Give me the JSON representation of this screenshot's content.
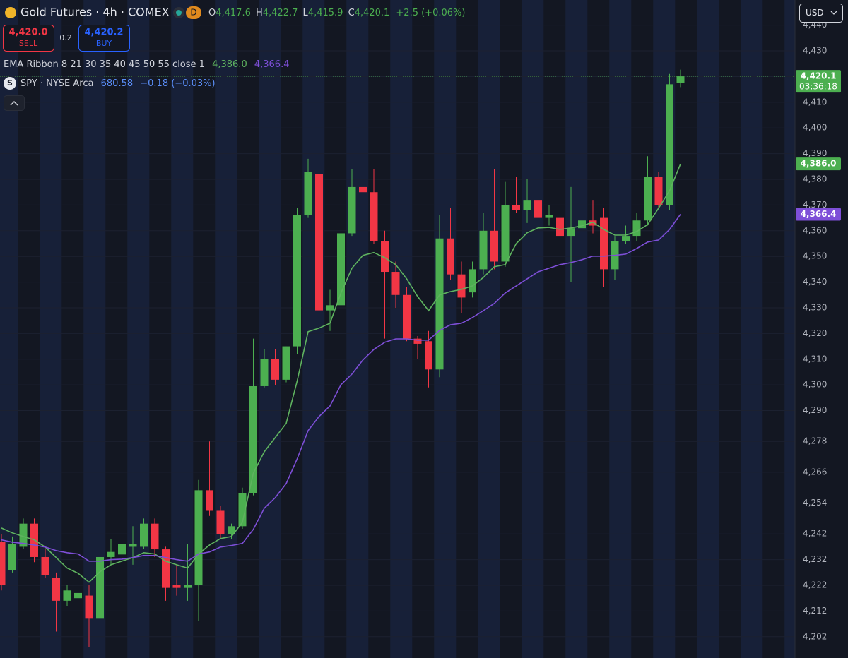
{
  "header": {
    "title": "Gold Futures · 4h · COMEX",
    "badge": "D",
    "ohlc": [
      {
        "key": "O",
        "value": "4,417.6"
      },
      {
        "key": "H",
        "value": "4,422.7"
      },
      {
        "key": "L",
        "value": "4,415.9"
      },
      {
        "key": "C",
        "value": "4,420.1"
      }
    ],
    "change": "+2.5 (+0.06%)"
  },
  "trade": {
    "sell_price": "4,420.0",
    "sell": "SELL",
    "spread": "0.2",
    "buy_price": "4,420.2",
    "buy": "BUY"
  },
  "indicators": {
    "ema_label": "EMA Ribbon 8 21 30 35 40 45 50 55 close 1",
    "ema_values": [
      "4,386.0",
      "4,366.4"
    ],
    "spy_icon": "S",
    "spy_label": "SPY · NYSE Arca",
    "spy_price": "680.58",
    "spy_change": "−0.18 (−0.03%)"
  },
  "currency": "USD",
  "chart_data": {
    "type": "candlestick",
    "categories": [
      null,
      null,
      null,
      null,
      null,
      null,
      null,
      null,
      null,
      null,
      null,
      null,
      null,
      null,
      null,
      null,
      null,
      null,
      null,
      null,
      null,
      null,
      null,
      null,
      null,
      null,
      null,
      null,
      null,
      null,
      null,
      null,
      null,
      null,
      null,
      null,
      null,
      null,
      null,
      null,
      null,
      null,
      null,
      null,
      null,
      null,
      null,
      null,
      null,
      null,
      null,
      null,
      null,
      null,
      null,
      null,
      null,
      null,
      null,
      null,
      null,
      null,
      null
    ],
    "open": [
      4239,
      4228,
      4237,
      4246,
      4233,
      4225,
      4216,
      4217,
      4218,
      4209,
      4233,
      4234,
      4237,
      4237,
      4246,
      4236,
      4222,
      4221,
      4222,
      4259,
      4251,
      4242,
      4245,
      4258,
      4299.5,
      4310,
      4302,
      4315,
      4366,
      4382,
      4329,
      4331,
      4359,
      4377,
      4375,
      4356,
      4344,
      4335,
      4318,
      4317,
      4306,
      4357,
      4343,
      4336,
      4345,
      4360,
      4348,
      4370,
      4368,
      4372,
      4365,
      4365,
      4358,
      4361,
      4364,
      4365,
      4345,
      4356,
      4358,
      4364,
      4381,
      4370,
      4417.6
    ],
    "high": [
      4242,
      4241,
      4248,
      4248,
      4236,
      4227,
      4222,
      4226,
      4222,
      4234,
      4240,
      4247,
      4245,
      4248,
      4248,
      4237,
      4230,
      4238,
      4263,
      4278,
      4253,
      4246,
      4260,
      4318,
      4314,
      4314,
      4315,
      4369,
      4388,
      4384,
      4337,
      4365,
      4384,
      4385,
      4384,
      4360,
      4348,
      4338,
      4319,
      4321,
      4366,
      4369,
      4348,
      4348,
      4367,
      4384,
      4379,
      4381,
      4380,
      4376,
      4370,
      4369,
      4377,
      4410,
      4372,
      4369,
      4358,
      4362,
      4367,
      4389,
      4383,
      4421,
      4422.7
    ],
    "low": [
      4220,
      4227,
      4236,
      4231,
      4225,
      4204,
      4214,
      4213,
      4198,
      4208,
      4230,
      4231,
      4230,
      4236,
      4233,
      4216,
      4218,
      4216,
      4208,
      4249,
      4240,
      4240,
      4244,
      4257,
      4299,
      4300,
      4301,
      4312,
      4365,
      4288,
      4321,
      4329,
      4358,
      4373,
      4355,
      4318,
      4330,
      4317,
      4310,
      4299,
      4303,
      4341,
      4328,
      4334,
      4343,
      4345,
      4346,
      4367,
      4363,
      4363,
      4362,
      4352,
      4340,
      4360,
      4359,
      4338,
      4341,
      4355,
      4356,
      4362,
      4369,
      4368,
      4415.9
    ],
    "close": [
      4222,
      4238,
      4246,
      4233,
      4226,
      4216,
      4220,
      4219,
      4209,
      4233,
      4235,
      4238,
      4238,
      4246,
      4236,
      4221,
      4221,
      4222,
      4259,
      4251,
      4242,
      4245,
      4258,
      4299.5,
      4310,
      4302,
      4315,
      4366,
      4383,
      4329,
      4331,
      4359,
      4377,
      4375,
      4356,
      4344,
      4335,
      4318,
      4316,
      4306,
      4357,
      4343,
      4334,
      4345,
      4360,
      4348,
      4370,
      4368,
      4372,
      4365,
      4366,
      4358,
      4361,
      4364,
      4362,
      4345,
      4356,
      4358,
      4364,
      4381,
      4370,
      4417,
      4420.1
    ],
    "up_color": "#4caf50",
    "down_color": "#f23645",
    "lines": [
      {
        "color": "#5fb35f",
        "values": [
          4244.3,
          4242.4,
          4241.0,
          4239.7,
          4236.9,
          4232.8,
          4228.7,
          4226.7,
          4223.2,
          4227.3,
          4230.0,
          4231.4,
          4232.8,
          4234.7,
          4234.2,
          4231.4,
          4230.0,
          4228.7,
          4234.2,
          4237.7,
          4240.2,
          4241.0,
          4246.5,
          4265.7,
          4274.0,
          4279.5,
          4285.0,
          4301.5,
          4320.7,
          4322.1,
          4324.0,
          4335.8,
          4345.4,
          4350.4,
          4351.5,
          4349.5,
          4346.8,
          4341.3,
          4334.4,
          4328.9,
          4335.0,
          4336.3,
          4337.2,
          4338.5,
          4341.8,
          4346.0,
          4346.8,
          4355.0,
          4359.2,
          4361.1,
          4361.3,
          4360.5,
          4361.1,
          4361.9,
          4363.3,
          4360.5,
          4358.3,
          4358.3,
          4359.7,
          4362.4,
          4368.8,
          4375.6,
          4386.0
        ]
      },
      {
        "color": "#7e4fd8",
        "values": [
          4239.7,
          4238.8,
          4238.3,
          4237.7,
          4236.9,
          4235.5,
          4234.7,
          4234.2,
          4231.4,
          4231.4,
          4232.0,
          4232.2,
          4232.8,
          4233.6,
          4233.6,
          4232.8,
          4232.0,
          4231.4,
          4234.2,
          4235.0,
          4236.9,
          4237.5,
          4238.3,
          4243.8,
          4252.0,
          4256.1,
          4261.6,
          4271.2,
          4282.2,
          4287.7,
          4291.8,
          4300.1,
          4304.2,
          4309.7,
          4313.8,
          4316.6,
          4317.9,
          4317.9,
          4317.4,
          4317.4,
          4321.2,
          4323.4,
          4324.0,
          4326.2,
          4328.9,
          4331.7,
          4335.8,
          4338.5,
          4341.3,
          4344.0,
          4345.4,
          4346.8,
          4347.6,
          4348.7,
          4350.1,
          4350.1,
          4350.4,
          4350.9,
          4353.1,
          4355.6,
          4356.4,
          4360.5,
          4366.4
        ]
      }
    ],
    "ylim": [
      4193.7,
      4449.8
    ],
    "yticks": [
      {
        "value": 4440,
        "label": "4,440"
      },
      {
        "value": 4430,
        "label": "4,430"
      },
      {
        "value": 4420,
        "label": "4,420"
      },
      {
        "value": 4410,
        "label": "4,410"
      },
      {
        "value": 4400,
        "label": "4,400"
      },
      {
        "value": 4390,
        "label": "4,390"
      },
      {
        "value": 4380,
        "label": "4,380"
      },
      {
        "value": 4370,
        "label": "4,370"
      },
      {
        "value": 4360,
        "label": "4,360"
      },
      {
        "value": 4350,
        "label": "4,350"
      },
      {
        "value": 4340,
        "label": "4,340"
      },
      {
        "value": 4330,
        "label": "4,330"
      },
      {
        "value": 4320,
        "label": "4,320"
      },
      {
        "value": 4310,
        "label": "4,310"
      },
      {
        "value": 4300,
        "label": "4,300"
      },
      {
        "value": 4290,
        "label": "4,290"
      },
      {
        "value": 4278,
        "label": "4,278"
      },
      {
        "value": 4266,
        "label": "4,266"
      },
      {
        "value": 4254,
        "label": "4,254"
      },
      {
        "value": 4242,
        "label": "4,242"
      },
      {
        "value": 4232,
        "label": "4,232"
      },
      {
        "value": 4222,
        "label": "4,222"
      },
      {
        "value": 4212,
        "label": "4,212"
      },
      {
        "value": 4202,
        "label": "4,202"
      }
    ],
    "grid": true,
    "price_labels": [
      {
        "value": 4420.1,
        "label": "4,420.1",
        "sublabel": "03:36:18",
        "color": "#4caf50"
      },
      {
        "value": 4386.0,
        "label": "4,386.0",
        "color": "#4caf50"
      },
      {
        "value": 4366.4,
        "label": "4,366.4",
        "color": "#7e4fd8"
      }
    ]
  }
}
